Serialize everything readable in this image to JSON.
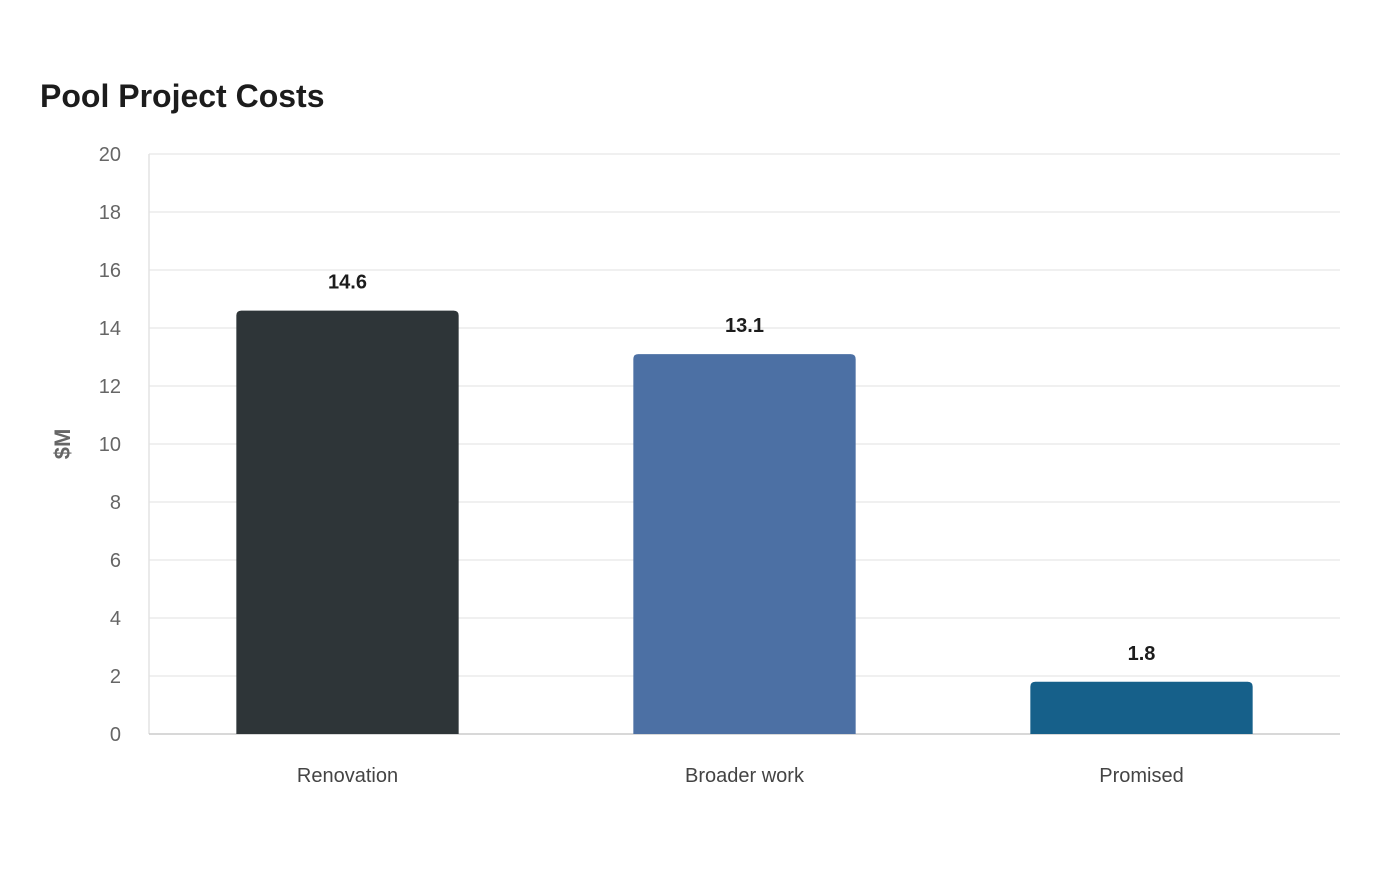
{
  "chart_data": {
    "type": "bar",
    "title": "Pool Project Costs",
    "xlabel": "",
    "ylabel": "$M",
    "categories": [
      "Renovation",
      "Broader work",
      "Promised"
    ],
    "values": [
      14.6,
      13.1,
      1.8
    ],
    "data_labels": [
      "14.6",
      "13.1",
      "1.8"
    ],
    "colors": [
      "#2e3538",
      "#4c70a4",
      "#16608a"
    ],
    "ylim": [
      0,
      20
    ],
    "yticks": [
      0,
      2,
      4,
      6,
      8,
      10,
      12,
      14,
      16,
      18,
      20
    ],
    "grid": true,
    "legend": "none"
  }
}
